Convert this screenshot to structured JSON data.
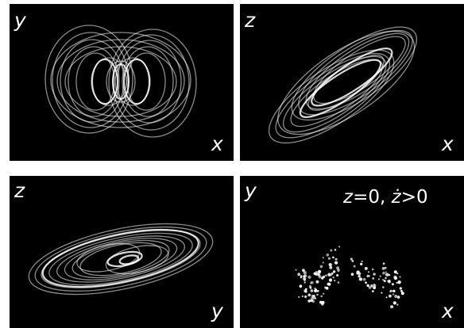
{
  "panels": [
    {
      "id": "xy",
      "axis_v": "y",
      "axis_h": "x"
    },
    {
      "id": "xz",
      "axis_v": "z",
      "axis_h": "x"
    },
    {
      "id": "yz",
      "axis_v": "z",
      "axis_h": "y"
    },
    {
      "id": "section",
      "axis_v": "y",
      "axis_h": "x",
      "condition": {
        "var1": "z",
        "rel1": "=0, ",
        "var2": "ż",
        "rel2": ">0"
      }
    }
  ],
  "colors": {
    "background": "#000000",
    "trace": "#ffffff",
    "page": "#ffffff"
  }
}
